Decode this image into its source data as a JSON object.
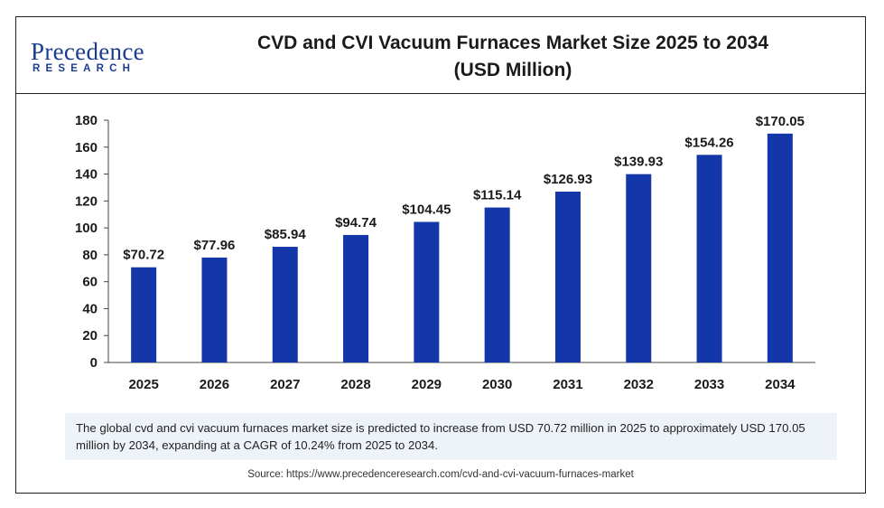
{
  "logo": {
    "name": "Precedence",
    "sub": "RESEARCH"
  },
  "title_line1": "CVD and CVI Vacuum Furnaces Market Size 2025 to 2034",
  "title_line2": "(USD Million)",
  "chart_data": {
    "type": "bar",
    "title": "CVD and CVI Vacuum Furnaces Market Size 2025 to 2034 (USD Million)",
    "categories": [
      "2025",
      "2026",
      "2027",
      "2028",
      "2029",
      "2030",
      "2031",
      "2032",
      "2033",
      "2034"
    ],
    "values": [
      70.72,
      77.96,
      85.94,
      94.74,
      104.45,
      115.14,
      126.93,
      139.93,
      154.26,
      170.05
    ],
    "value_labels": [
      "$70.72",
      "$77.96",
      "$85.94",
      "$94.74",
      "$104.45",
      "$115.14",
      "$126.93",
      "$139.93",
      "$154.26",
      "$170.05"
    ],
    "ylim": [
      0,
      180
    ],
    "yticks": [
      0,
      20,
      40,
      60,
      80,
      100,
      120,
      140,
      160,
      180
    ],
    "bar_color": "#1336a8",
    "grid": false,
    "xlabel": "",
    "ylabel": ""
  },
  "summary": "The global cvd and cvi vacuum furnaces market size is predicted to increase from USD 70.72 million in 2025 to approximately USD 170.05  million by 2034, expanding at a CAGR of 10.24% from 2025 to 2034.",
  "source": "Source: https://www.precedenceresearch.com/cvd-and-cvi-vacuum-furnaces-market"
}
